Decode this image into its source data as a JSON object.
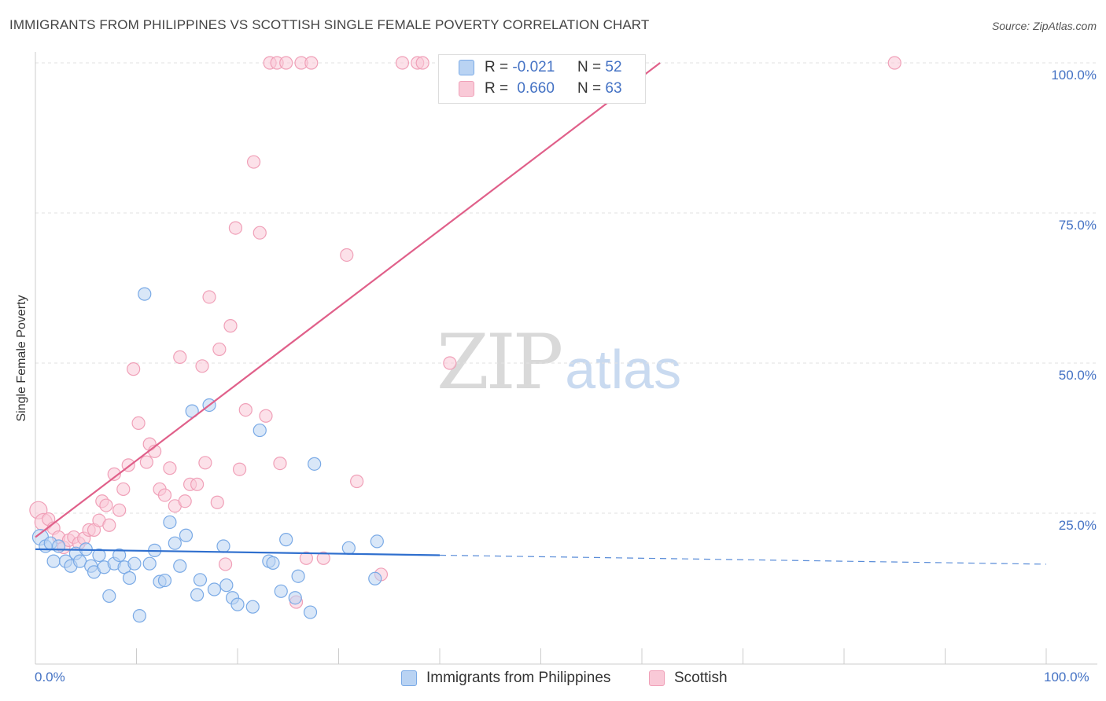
{
  "title": "IMMIGRANTS FROM PHILIPPINES VS SCOTTISH SINGLE FEMALE POVERTY CORRELATION CHART",
  "source": "Source: ZipAtlas.com",
  "watermark": {
    "zip": "ZIP",
    "atlas": "atlas"
  },
  "legend": {
    "r_label": "R =",
    "n_label": "N =",
    "series1": {
      "r": "-0.021",
      "n": "52"
    },
    "series2": {
      "r": "0.660",
      "n": "63"
    }
  },
  "bottom_legend": {
    "series1": "Immigrants from Philippines",
    "series2": "Scottish"
  },
  "chart_data": {
    "type": "scatter",
    "title": "IMMIGRANTS FROM PHILIPPINES VS SCOTTISH SINGLE FEMALE POVERTY CORRELATION CHART",
    "xlabel": "",
    "ylabel": "Single Female Poverty",
    "xlim": [
      0,
      100
    ],
    "ylim": [
      0,
      100
    ],
    "x_tick_labels": [
      "0.0%",
      "100.0%"
    ],
    "y_tick_labels": [
      "100.0%",
      "75.0%",
      "50.0%",
      "25.0%"
    ],
    "y_ticks": [
      100,
      75,
      50,
      25
    ],
    "grid": true,
    "colors": {
      "series1": "#7aaae6",
      "series1_fill": "#b9d3f3",
      "series1_line": "#2f6fce",
      "series2": "#f0a0b8",
      "series2_fill": "#f9c9d7",
      "series2_line": "#e0608a",
      "tick": "#4472c4"
    },
    "series": [
      {
        "name": "Immigrants from Philippines",
        "r": -0.021,
        "n": 52,
        "trend": {
          "x0": 0,
          "y0": 19.0,
          "x1": 40,
          "y1": 18.0,
          "dash_to_x": 100,
          "dash_to_y": 16.5
        },
        "points": [
          [
            0.5,
            21.0
          ],
          [
            1,
            19.5
          ],
          [
            1.5,
            20
          ],
          [
            1.8,
            17
          ],
          [
            2.3,
            19.5
          ],
          [
            3,
            17
          ],
          [
            3.5,
            16.2
          ],
          [
            4,
            18.3
          ],
          [
            4.4,
            17
          ],
          [
            5,
            19
          ],
          [
            5.5,
            16.2
          ],
          [
            5.8,
            15.2
          ],
          [
            6.3,
            18
          ],
          [
            6.8,
            16
          ],
          [
            7.3,
            11.2
          ],
          [
            7.8,
            16.6
          ],
          [
            8.3,
            18
          ],
          [
            8.8,
            16
          ],
          [
            9.3,
            14.2
          ],
          [
            9.8,
            16.6
          ],
          [
            10.3,
            7.9
          ],
          [
            10.8,
            61.5
          ],
          [
            11.3,
            16.6
          ],
          [
            11.8,
            18.8
          ],
          [
            12.3,
            13.6
          ],
          [
            12.8,
            13.8
          ],
          [
            13.3,
            23.5
          ],
          [
            13.8,
            20
          ],
          [
            14.3,
            16.2
          ],
          [
            14.9,
            21.3
          ],
          [
            15.5,
            42
          ],
          [
            16,
            11.4
          ],
          [
            16.3,
            13.9
          ],
          [
            17.2,
            43
          ],
          [
            17.7,
            12.3
          ],
          [
            18.6,
            19.5
          ],
          [
            18.9,
            13
          ],
          [
            19.5,
            10.9
          ],
          [
            20,
            9.8
          ],
          [
            21.5,
            9.4
          ],
          [
            22.2,
            38.8
          ],
          [
            23.1,
            17
          ],
          [
            23.5,
            16.7
          ],
          [
            24.3,
            12
          ],
          [
            24.8,
            20.6
          ],
          [
            25.7,
            10.9
          ],
          [
            26,
            14.5
          ],
          [
            27.2,
            8.5
          ],
          [
            27.6,
            33.2
          ],
          [
            31,
            19.2
          ],
          [
            33.6,
            14.1
          ],
          [
            33.8,
            20.3
          ]
        ]
      },
      {
        "name": "Scottish",
        "r": 0.66,
        "n": 63,
        "trend": {
          "x0": 0,
          "y0": 21.0,
          "x1": 61.8,
          "y1": 100
        },
        "points": [
          [
            0.3,
            25.5
          ],
          [
            0.8,
            23.5
          ],
          [
            1.3,
            24
          ],
          [
            1.8,
            22.5
          ],
          [
            2.3,
            21
          ],
          [
            2.8,
            19.3
          ],
          [
            3.3,
            20.5
          ],
          [
            3.8,
            21
          ],
          [
            4.3,
            20
          ],
          [
            4.8,
            20.8
          ],
          [
            5.3,
            22.2
          ],
          [
            5.8,
            22.2
          ],
          [
            6.3,
            23.8
          ],
          [
            6.6,
            27
          ],
          [
            7,
            26.3
          ],
          [
            7.3,
            23
          ],
          [
            7.8,
            31.5
          ],
          [
            8.3,
            25.5
          ],
          [
            8.7,
            29
          ],
          [
            9.2,
            33
          ],
          [
            9.7,
            49
          ],
          [
            10.2,
            40
          ],
          [
            11,
            33.5
          ],
          [
            11.3,
            36.5
          ],
          [
            11.8,
            35.3
          ],
          [
            12.3,
            29
          ],
          [
            12.8,
            28
          ],
          [
            13.3,
            32.5
          ],
          [
            13.8,
            26.2
          ],
          [
            14.3,
            51
          ],
          [
            14.8,
            27
          ],
          [
            15.3,
            29.8
          ],
          [
            16,
            29.8
          ],
          [
            16.5,
            49.5
          ],
          [
            16.8,
            33.4
          ],
          [
            17.2,
            61
          ],
          [
            18,
            26.8
          ],
          [
            18.2,
            52.3
          ],
          [
            18.8,
            16.5
          ],
          [
            19.3,
            56.2
          ],
          [
            19.8,
            72.5
          ],
          [
            20.2,
            32.3
          ],
          [
            20.8,
            42.2
          ],
          [
            21.6,
            83.5
          ],
          [
            22.2,
            71.7
          ],
          [
            22.8,
            41.2
          ],
          [
            23.2,
            100
          ],
          [
            23.9,
            100
          ],
          [
            24.2,
            33.3
          ],
          [
            24.8,
            100
          ],
          [
            25.8,
            10.2
          ],
          [
            26.3,
            100
          ],
          [
            26.8,
            17.5
          ],
          [
            27.3,
            100
          ],
          [
            28.5,
            17.5
          ],
          [
            30.8,
            68
          ],
          [
            31.8,
            30.3
          ],
          [
            34.2,
            14.8
          ],
          [
            36.3,
            100
          ],
          [
            37.8,
            100
          ],
          [
            38.3,
            100
          ],
          [
            41,
            50
          ],
          [
            85,
            100
          ]
        ]
      }
    ]
  }
}
